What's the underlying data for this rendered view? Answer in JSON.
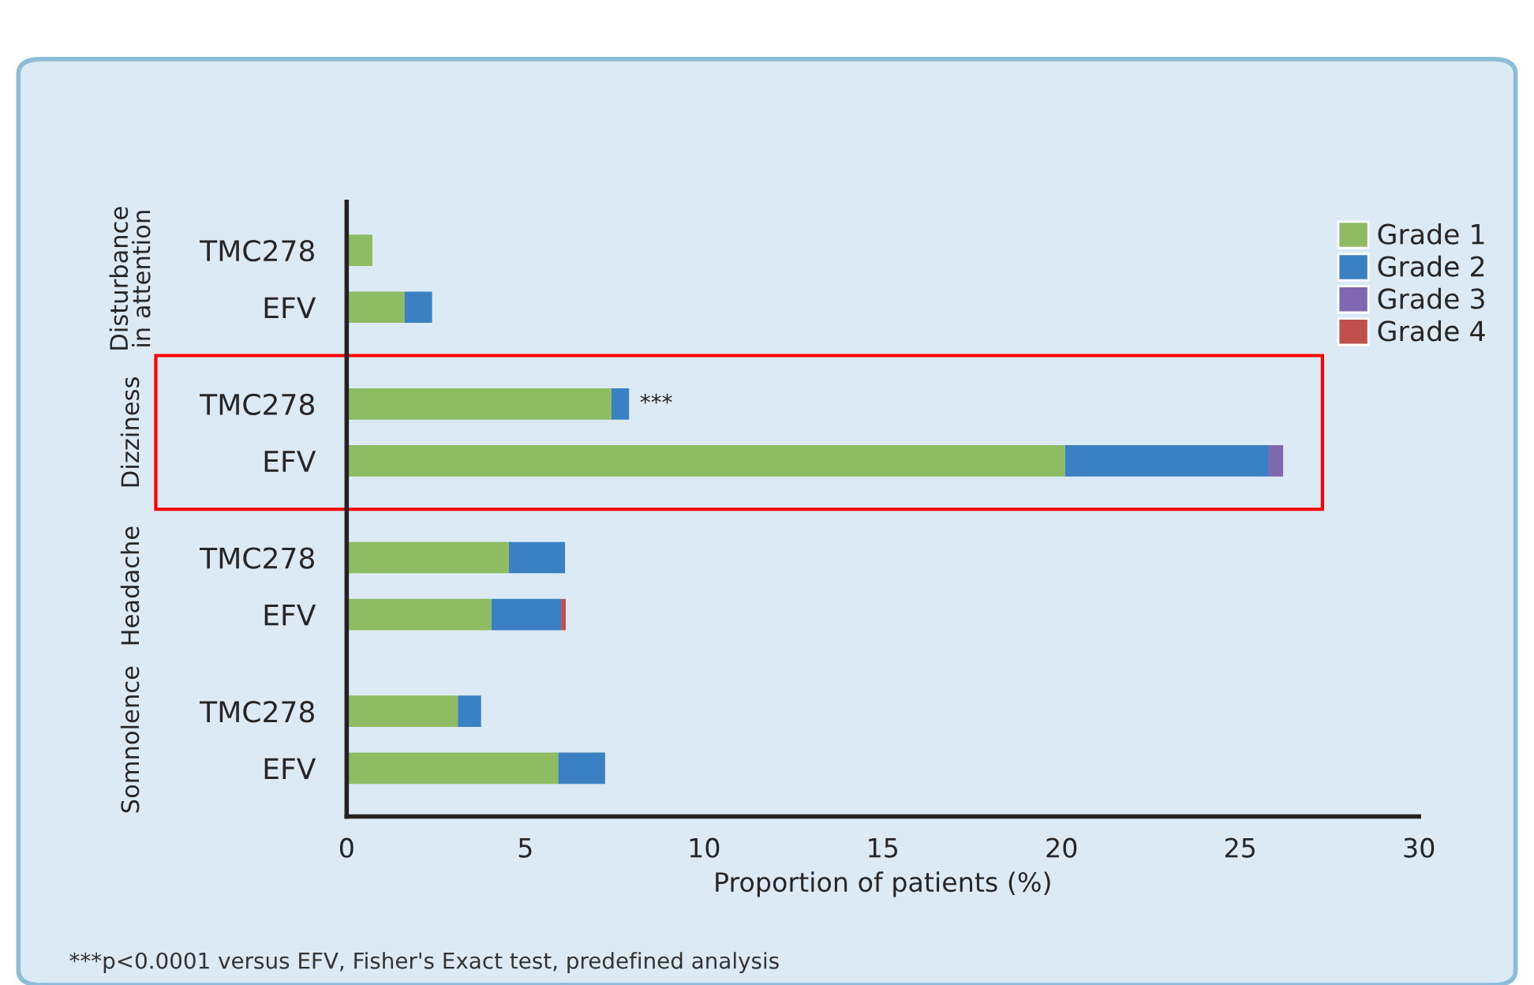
{
  "chart_data": {
    "type": "bar",
    "orientation": "horizontal",
    "stacked": true,
    "categories": [
      "TMC278",
      "EFV",
      "TMC278",
      "EFV",
      "TMC278",
      "EFV",
      "TMC278",
      "EFV"
    ],
    "series": [
      {
        "name": "Grade 1",
        "color": "#8fbc62",
        "values": [
          0.72,
          1.62,
          7.41,
          20.1,
          4.54,
          4.05,
          3.11,
          5.92
        ]
      },
      {
        "name": "Grade 2",
        "color": "#3b80c2",
        "values": [
          null,
          0.77,
          0.49,
          5.7,
          1.57,
          1.95,
          0.65,
          1.31
        ]
      },
      {
        "name": "Grade 3",
        "color": "#8068b0",
        "values": [
          null,
          null,
          null,
          0.4,
          null,
          null,
          null,
          null
        ]
      },
      {
        "name": "Grade 4",
        "color": "#c0504d",
        "values": [
          null,
          null,
          null,
          null,
          null,
          0.13,
          null,
          null
        ]
      }
    ],
    "xlabel": "Proportion of patients (%)",
    "xlim": [
      0,
      30
    ],
    "xticks": [
      0,
      5,
      10,
      15,
      20,
      25,
      30
    ],
    "legend": "top right",
    "grid": false,
    "annotations": [
      "Disturbance\nin attention",
      "Dizziness",
      "Headache",
      "Somnolence",
      {
        "text": "***",
        "x": 7.9
      },
      "***p<0.0001 versus EFV, Fisher's Exact test, predefined analysis"
    ]
  }
}
